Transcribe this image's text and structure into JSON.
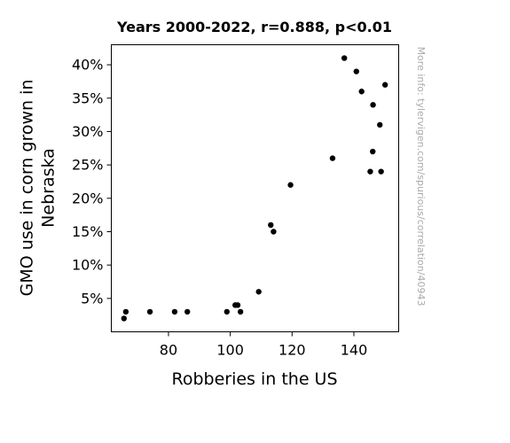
{
  "chart_data": {
    "type": "scatter",
    "title": "Years 2000-2022, r=0.888, p<0.01",
    "xlabel": "Robberies in the US",
    "ylabel": "GMO use in corn grown in Nebraska",
    "xlim": [
      61.5,
      154.5
    ],
    "ylim": [
      0,
      43
    ],
    "x_ticks": [
      80,
      100,
      120,
      140
    ],
    "y_ticks": [
      5,
      10,
      15,
      20,
      25,
      30,
      35,
      40
    ],
    "y_tick_labels": [
      "5%",
      "10%",
      "15%",
      "20%",
      "25%",
      "30%",
      "35%",
      "40%"
    ],
    "grid": false,
    "marker_color": "#000000",
    "points": [
      {
        "x": 65.6,
        "y": 2
      },
      {
        "x": 66.2,
        "y": 3
      },
      {
        "x": 74.0,
        "y": 3
      },
      {
        "x": 82.0,
        "y": 3
      },
      {
        "x": 86.1,
        "y": 3
      },
      {
        "x": 98.9,
        "y": 3
      },
      {
        "x": 101.6,
        "y": 4
      },
      {
        "x": 102.4,
        "y": 4
      },
      {
        "x": 103.3,
        "y": 3
      },
      {
        "x": 109.2,
        "y": 6
      },
      {
        "x": 113.1,
        "y": 16
      },
      {
        "x": 114.0,
        "y": 15
      },
      {
        "x": 119.5,
        "y": 22
      },
      {
        "x": 133.1,
        "y": 26
      },
      {
        "x": 136.9,
        "y": 41
      },
      {
        "x": 140.8,
        "y": 39
      },
      {
        "x": 142.5,
        "y": 36
      },
      {
        "x": 145.3,
        "y": 24
      },
      {
        "x": 146.1,
        "y": 27
      },
      {
        "x": 146.2,
        "y": 34
      },
      {
        "x": 148.4,
        "y": 31
      },
      {
        "x": 148.8,
        "y": 24
      },
      {
        "x": 150.1,
        "y": 37
      }
    ]
  },
  "watermark": "More info: tylervigen.com/spurious/correlation/40943"
}
